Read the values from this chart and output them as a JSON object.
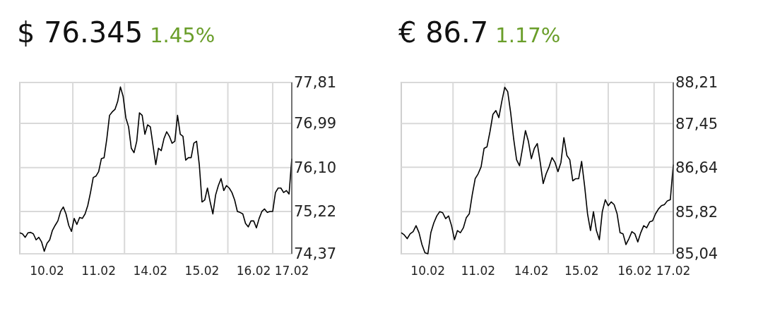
{
  "chart_data": [
    {
      "type": "line",
      "title": "$ 76.345",
      "subtitle": "1.45%",
      "categories": [
        null,
        null,
        null,
        null,
        null,
        null,
        null,
        null,
        null,
        null,
        "10.02",
        null,
        null,
        null,
        null,
        null,
        null,
        null,
        null,
        null,
        null,
        null,
        null,
        null,
        null,
        null,
        null,
        null,
        null,
        "11.02",
        null,
        null,
        null,
        null,
        null,
        null,
        null,
        null,
        null,
        null,
        null,
        null,
        null,
        null,
        null,
        null,
        null,
        null,
        "14.02",
        null,
        null,
        null,
        null,
        null,
        null,
        null,
        null,
        null,
        null,
        null,
        null,
        null,
        null,
        null,
        null,
        null,
        null,
        "15.02",
        null,
        null,
        null,
        null,
        null,
        null,
        null,
        null,
        null,
        null,
        null,
        null,
        null,
        null,
        null,
        null,
        null,
        null,
        "16.02",
        null,
        null,
        null,
        null,
        null,
        null,
        null,
        null,
        null,
        null,
        null,
        null,
        null,
        "17.02"
      ],
      "ylim": [
        74.37,
        77.81
      ],
      "yticks": [
        {
          "value": 74.37,
          "label": "74,37"
        },
        {
          "value": 75.22,
          "label": "75,22"
        },
        {
          "value": 76.1,
          "label": "76,10"
        },
        {
          "value": 76.99,
          "label": "76,99"
        },
        {
          "value": 77.81,
          "label": "77,81"
        }
      ],
      "grid": true,
      "series": [
        {
          "color": "#000000",
          "values": [
            74.79,
            74.77,
            74.7,
            74.79,
            74.8,
            74.77,
            74.65,
            74.7,
            74.61,
            74.42,
            74.58,
            74.65,
            74.84,
            74.94,
            75.03,
            75.22,
            75.31,
            75.17,
            74.94,
            74.82,
            75.08,
            74.96,
            75.1,
            75.08,
            75.17,
            75.34,
            75.6,
            75.9,
            75.93,
            76.02,
            76.28,
            76.3,
            76.68,
            77.15,
            77.22,
            77.27,
            77.43,
            77.72,
            77.53,
            77.1,
            76.92,
            76.49,
            76.4,
            76.63,
            77.2,
            77.15,
            76.77,
            76.96,
            76.92,
            76.54,
            76.16,
            76.49,
            76.44,
            76.68,
            76.82,
            76.73,
            76.59,
            76.63,
            77.15,
            76.77,
            76.73,
            76.25,
            76.3,
            76.3,
            76.59,
            76.63,
            76.16,
            75.41,
            75.45,
            75.69,
            75.41,
            75.17,
            75.55,
            75.74,
            75.88,
            75.64,
            75.74,
            75.69,
            75.6,
            75.45,
            75.22,
            75.2,
            75.17,
            74.98,
            74.91,
            75.03,
            75.03,
            74.89,
            75.08,
            75.22,
            75.27,
            75.2,
            75.22,
            75.22,
            75.6,
            75.69,
            75.69,
            75.6,
            75.64,
            75.57,
            76.28
          ]
        }
      ]
    },
    {
      "type": "line",
      "title": "€ 86.7",
      "subtitle": "1.17%",
      "categories": [
        null,
        null,
        null,
        null,
        null,
        null,
        null,
        null,
        null,
        "10.02",
        null,
        null,
        null,
        null,
        null,
        null,
        null,
        null,
        null,
        null,
        null,
        null,
        null,
        null,
        null,
        null,
        "11.02",
        null,
        null,
        null,
        null,
        null,
        null,
        null,
        null,
        null,
        null,
        null,
        null,
        null,
        null,
        null,
        null,
        null,
        "14.02",
        null,
        null,
        null,
        null,
        null,
        null,
        null,
        null,
        null,
        null,
        null,
        null,
        null,
        null,
        null,
        null,
        "15.02",
        null,
        null,
        null,
        null,
        null,
        null,
        null,
        null,
        null,
        null,
        null,
        null,
        null,
        null,
        null,
        null,
        null,
        "16.02",
        null,
        null,
        null,
        null,
        null,
        null,
        null,
        null,
        null,
        null,
        null,
        null,
        "17.02"
      ],
      "ylim": [
        85.04,
        88.21
      ],
      "yticks": [
        {
          "value": 85.04,
          "label": "85,04"
        },
        {
          "value": 85.82,
          "label": "85,82"
        },
        {
          "value": 86.64,
          "label": "86,64"
        },
        {
          "value": 87.45,
          "label": "87,45"
        },
        {
          "value": 88.21,
          "label": "88,21"
        }
      ],
      "grid": true,
      "series": [
        {
          "color": "#000000",
          "values": [
            85.43,
            85.39,
            85.32,
            85.41,
            85.45,
            85.56,
            85.43,
            85.21,
            85.06,
            85.04,
            85.43,
            85.61,
            85.74,
            85.82,
            85.8,
            85.69,
            85.74,
            85.56,
            85.3,
            85.47,
            85.43,
            85.52,
            85.71,
            85.78,
            86.13,
            86.43,
            86.52,
            86.65,
            86.99,
            87.02,
            87.3,
            87.62,
            87.69,
            87.56,
            87.86,
            88.12,
            88.04,
            87.65,
            87.17,
            86.78,
            86.67,
            86.99,
            87.32,
            87.12,
            86.8,
            86.99,
            87.08,
            86.73,
            86.34,
            86.52,
            86.65,
            86.82,
            86.73,
            86.56,
            86.73,
            87.19,
            86.86,
            86.78,
            86.39,
            86.43,
            86.43,
            86.75,
            86.3,
            85.78,
            85.47,
            85.82,
            85.47,
            85.3,
            85.82,
            86.04,
            85.93,
            86.0,
            85.95,
            85.78,
            85.43,
            85.41,
            85.21,
            85.32,
            85.45,
            85.41,
            85.26,
            85.43,
            85.56,
            85.52,
            85.63,
            85.65,
            85.78,
            85.87,
            85.93,
            85.95,
            86.02,
            86.04,
            86.69
          ]
        }
      ]
    }
  ]
}
